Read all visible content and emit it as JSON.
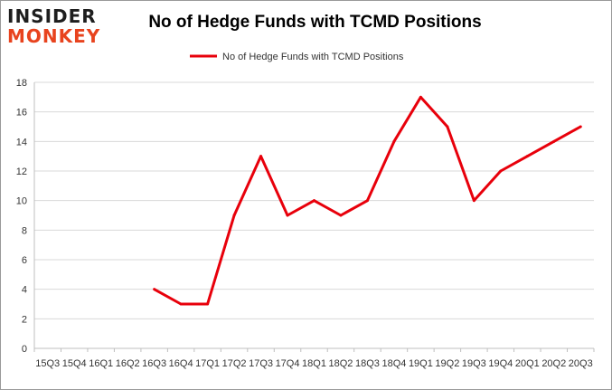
{
  "logo": {
    "line1": "INSIDER",
    "line2": "MONKEY"
  },
  "chart_data": {
    "type": "line",
    "title": "No of Hedge Funds with TCMD Positions",
    "xlabel": "",
    "ylabel": "",
    "categories": [
      "Q3 2015",
      "Q4 2015",
      "Q1 2016",
      "Q2 2016",
      "Q3 2016",
      "Q4 2016",
      "Q1 2017",
      "Q2 2017",
      "Q3 2017",
      "Q4 2017",
      "Q1 2018",
      "Q2 2018",
      "Q3 2018",
      "Q4 2018",
      "Q1 2019",
      "Q2 2019",
      "Q3 2019",
      "Q4 2019",
      "Q1 2020",
      "Q2 2020",
      "Q3 2020"
    ],
    "tick_labels": [
      "15Q3",
      "15Q4",
      "16Q1",
      "16Q2",
      "16Q3",
      "16Q4",
      "17Q1",
      "17Q2",
      "17Q3",
      "17Q4",
      "18Q1",
      "18Q2",
      "18Q3",
      "18Q4",
      "19Q1",
      "19Q2",
      "19Q3",
      "19Q4",
      "20Q1",
      "20Q2",
      "20Q3"
    ],
    "series": [
      {
        "name": "No of Hedge Funds with TCMD Positions",
        "color": "#e8000b",
        "values": [
          null,
          null,
          null,
          null,
          4,
          3,
          3,
          9,
          13,
          9,
          10,
          9,
          10,
          14,
          17,
          15,
          10,
          12,
          13,
          14,
          15
        ]
      }
    ],
    "ylim": [
      0,
      18
    ],
    "yticks": [
      0,
      2,
      4,
      6,
      8,
      10,
      12,
      14,
      16,
      18
    ],
    "grid": true,
    "legend": "top-center"
  }
}
